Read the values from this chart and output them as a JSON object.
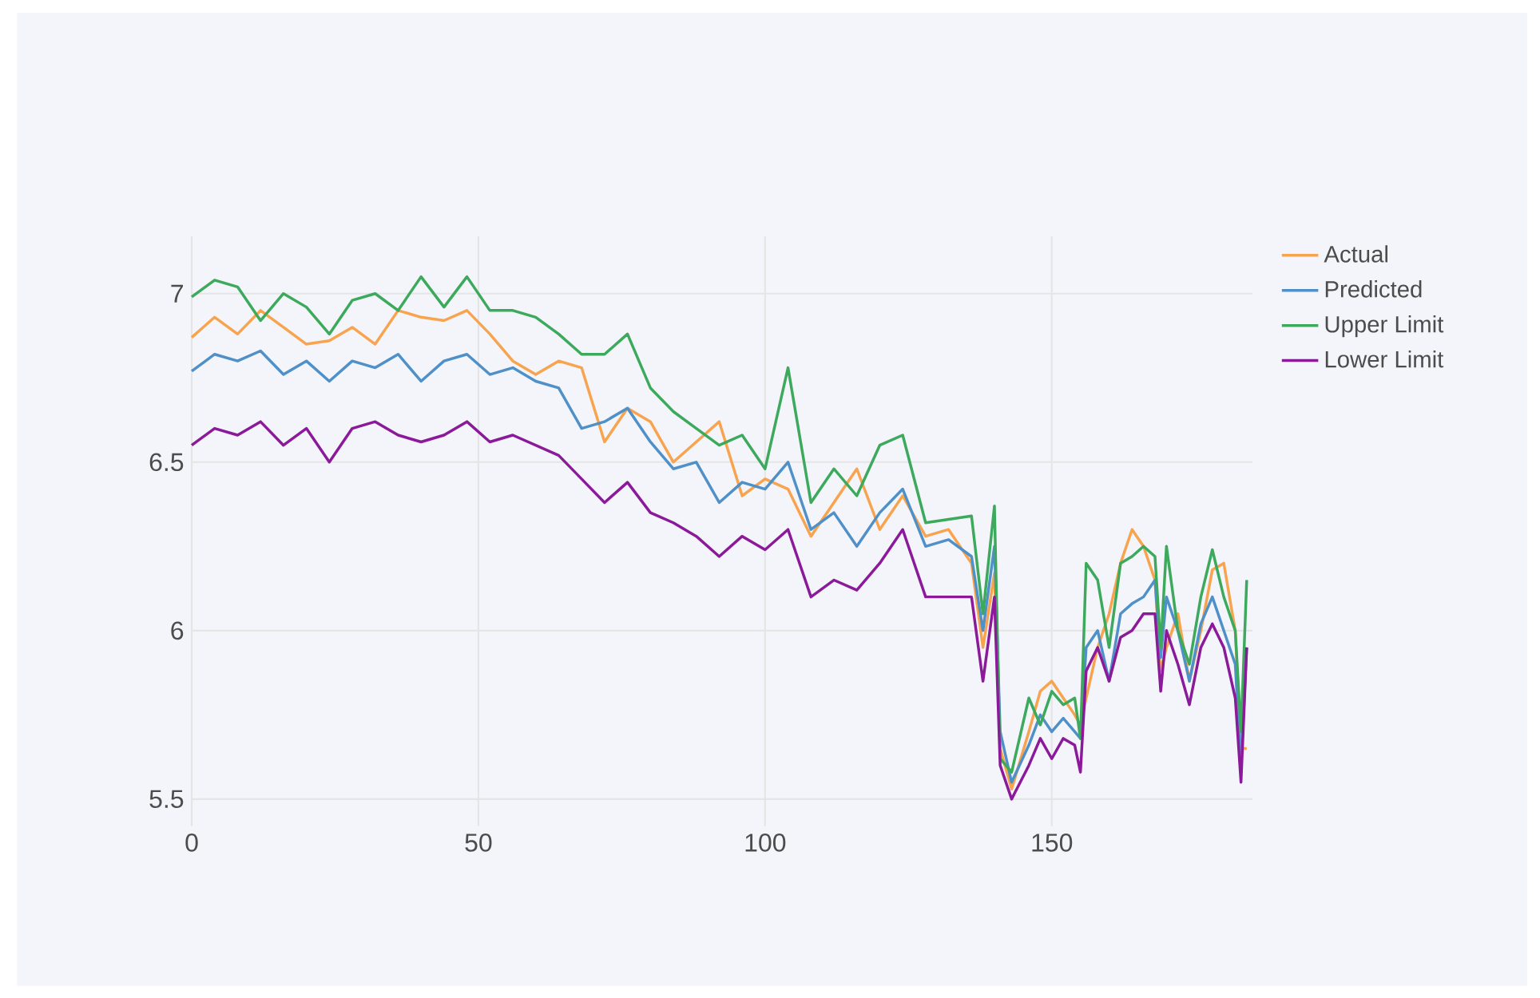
{
  "chart_data": {
    "type": "line",
    "x": [
      0,
      4,
      8,
      12,
      16,
      20,
      24,
      28,
      32,
      36,
      40,
      44,
      48,
      52,
      56,
      60,
      64,
      68,
      72,
      76,
      80,
      84,
      88,
      92,
      96,
      100,
      104,
      108,
      112,
      116,
      120,
      124,
      128,
      132,
      136,
      138,
      140,
      141,
      143,
      146,
      148,
      150,
      152,
      154,
      155,
      156,
      158,
      160,
      162,
      164,
      166,
      168,
      169,
      170,
      172,
      174,
      176,
      178,
      180,
      182,
      183,
      184
    ],
    "series": [
      {
        "name": "Actual",
        "color": "#f8a34e",
        "values": [
          6.87,
          6.93,
          6.88,
          6.95,
          6.9,
          6.85,
          6.86,
          6.9,
          6.85,
          6.95,
          6.93,
          6.92,
          6.95,
          6.88,
          6.8,
          6.76,
          6.8,
          6.78,
          6.56,
          6.66,
          6.62,
          6.5,
          6.56,
          6.62,
          6.4,
          6.45,
          6.42,
          6.28,
          6.38,
          6.48,
          6.3,
          6.4,
          6.28,
          6.3,
          6.2,
          5.95,
          6.17,
          5.65,
          5.53,
          5.7,
          5.82,
          5.85,
          5.8,
          5.75,
          5.72,
          5.8,
          5.95,
          6.05,
          6.2,
          6.3,
          6.25,
          6.15,
          5.88,
          5.95,
          6.05,
          5.85,
          6.0,
          6.18,
          6.2,
          6.0,
          5.65,
          5.65
        ]
      },
      {
        "name": "Predicted",
        "color": "#4f90c8",
        "values": [
          6.77,
          6.82,
          6.8,
          6.83,
          6.76,
          6.8,
          6.74,
          6.8,
          6.78,
          6.82,
          6.74,
          6.8,
          6.82,
          6.76,
          6.78,
          6.74,
          6.72,
          6.6,
          6.62,
          6.66,
          6.56,
          6.48,
          6.5,
          6.38,
          6.44,
          6.42,
          6.5,
          6.3,
          6.35,
          6.25,
          6.35,
          6.42,
          6.25,
          6.27,
          6.22,
          6.0,
          6.25,
          5.7,
          5.55,
          5.66,
          5.75,
          5.7,
          5.74,
          5.7,
          5.68,
          5.95,
          6.0,
          5.85,
          6.05,
          6.08,
          6.1,
          6.15,
          5.92,
          6.1,
          6.0,
          5.85,
          6.02,
          6.1,
          6.0,
          5.9,
          5.6,
          5.95
        ]
      },
      {
        "name": "Upper Limit",
        "color": "#3ca95c",
        "values": [
          6.99,
          7.04,
          7.02,
          6.92,
          7.0,
          6.96,
          6.88,
          6.98,
          7.0,
          6.95,
          7.05,
          6.96,
          7.05,
          6.95,
          6.95,
          6.93,
          6.88,
          6.82,
          6.82,
          6.88,
          6.72,
          6.65,
          6.6,
          6.55,
          6.58,
          6.48,
          6.78,
          6.38,
          6.48,
          6.4,
          6.55,
          6.58,
          6.32,
          6.33,
          6.34,
          6.05,
          6.37,
          5.62,
          5.58,
          5.8,
          5.72,
          5.82,
          5.78,
          5.8,
          5.68,
          6.2,
          6.15,
          5.95,
          6.2,
          6.22,
          6.25,
          6.22,
          5.95,
          6.25,
          6.0,
          5.9,
          6.1,
          6.24,
          6.1,
          6.0,
          5.7,
          6.15
        ]
      },
      {
        "name": "Lower Limit",
        "color": "#8b1a9a",
        "values": [
          6.55,
          6.6,
          6.58,
          6.62,
          6.55,
          6.6,
          6.5,
          6.6,
          6.62,
          6.58,
          6.56,
          6.58,
          6.62,
          6.56,
          6.58,
          6.55,
          6.52,
          6.45,
          6.38,
          6.44,
          6.35,
          6.32,
          6.28,
          6.22,
          6.28,
          6.24,
          6.3,
          6.1,
          6.15,
          6.12,
          6.2,
          6.3,
          6.1,
          6.1,
          6.1,
          5.85,
          6.1,
          5.6,
          5.5,
          5.6,
          5.68,
          5.62,
          5.68,
          5.66,
          5.58,
          5.88,
          5.95,
          5.85,
          5.98,
          6.0,
          6.05,
          6.05,
          5.82,
          6.0,
          5.9,
          5.78,
          5.95,
          6.02,
          5.95,
          5.8,
          5.55,
          5.95
        ]
      }
    ],
    "xlim": [
      0,
      185
    ],
    "ylim": [
      5.42,
      7.17
    ],
    "xticks": [
      0,
      50,
      100,
      150
    ],
    "yticks": [
      5.5,
      6,
      6.5,
      7
    ],
    "grid": true,
    "legend": "top right",
    "marker": "none",
    "line_style": "solid"
  }
}
